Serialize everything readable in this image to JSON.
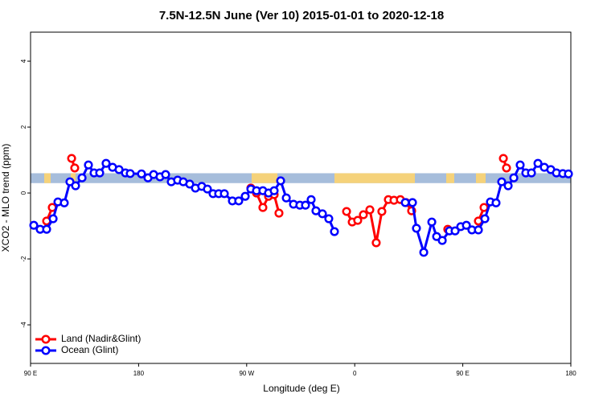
{
  "chart_data": {
    "type": "line",
    "title": "7.5N-12.5N June (Ver 10)   2015-01-01 to 2020-12-18",
    "x_label": "Longitude (deg E)",
    "y_label": "XCO2 - MLO trend (ppm)",
    "xlim": [
      90,
      540
    ],
    "ylim": [
      -5.17,
      4.88
    ],
    "xticks": [
      {
        "value": 90,
        "label": "90 E"
      },
      180,
      {
        "value": 270,
        "label": "90 W"
      },
      {
        "value": 360,
        "label": "0"
      },
      {
        "value": 450,
        "label": "90 E"
      },
      {
        "value": 540,
        "label": "180"
      }
    ],
    "yticks": [
      -4,
      -2,
      0,
      2,
      4
    ],
    "band": [
      0.3,
      0.6
    ],
    "legend": "bottom-left",
    "series": [
      {
        "name": "Land (Nadir&Glint)",
        "color": "#ff0000",
        "x": [
          103.4,
          108.1,
          115,
          124.2,
          126.8,
          200,
          273.5,
          278.2,
          283.5,
          288.2,
          292.9,
          296.9,
          380,
          353.2,
          357.9,
          362.5,
          367.2,
          372.6,
          377.9,
          382.6,
          388,
          392.7,
          398,
          402.7,
          407.4,
          420,
          437.5,
          450,
          463,
          467.7,
          475,
          483.8,
          486.4
        ],
        "values": [
          -0.85,
          -0.44,
          null,
          1.05,
          0.76,
          null,
          0.15,
          0.0,
          -0.44,
          -0.1,
          -0.05,
          -0.61,
          null,
          -0.56,
          -0.88,
          -0.83,
          -0.66,
          -0.51,
          -1.51,
          -0.56,
          -0.2,
          -0.22,
          -0.2,
          -0.29,
          -0.54,
          null,
          -1.1,
          null,
          -0.85,
          -0.44,
          null,
          1.05,
          0.76
        ]
      },
      {
        "name": "Ocean (Glint)",
        "color": "#0000ff",
        "x": [
          92.7,
          98,
          103.4,
          108.8,
          112.8,
          118.1,
          122.8,
          127.5,
          132.9,
          138.2,
          142.9,
          147.6,
          152.9,
          158.3,
          163.7,
          169,
          173,
          182.4,
          187.8,
          192.5,
          197.8,
          202.5,
          207.2,
          212.5,
          217.2,
          222.6,
          227.3,
          232.6,
          237.3,
          242,
          246.7,
          251.4,
          258.1,
          263.4,
          268.8,
          273.5,
          278.2,
          283.5,
          288.2,
          292.9,
          298.3,
          303,
          309,
          314.3,
          319,
          323.7,
          327.7,
          333.1,
          338.4,
          343.1,
          370,
          402.1,
          408.1,
          411.4,
          417.5,
          424.2,
          428.2,
          432.9,
          438.9,
          443.6,
          448.3,
          453,
          457.6,
          463,
          468.4,
          473,
          477.7,
          482.4,
          487.8,
          492.5,
          497.8,
          502.5,
          507.2,
          512.6,
          517.9,
          523.3,
          528,
          533.3,
          538
        ],
        "values": [
          -0.98,
          -1.1,
          -1.1,
          -0.78,
          -0.27,
          -0.3,
          0.34,
          0.22,
          0.46,
          0.85,
          0.61,
          0.61,
          0.9,
          0.78,
          0.71,
          0.61,
          0.59,
          0.58,
          0.46,
          0.56,
          0.49,
          0.56,
          0.34,
          0.39,
          0.34,
          0.27,
          0.15,
          0.2,
          0.12,
          -0.02,
          -0.02,
          -0.02,
          -0.24,
          -0.24,
          -0.1,
          0.12,
          0.07,
          0.07,
          0.0,
          0.07,
          0.37,
          -0.15,
          -0.34,
          -0.37,
          -0.37,
          -0.2,
          -0.54,
          -0.63,
          -0.78,
          -1.17,
          null,
          -0.29,
          -0.29,
          -1.07,
          -1.8,
          -0.88,
          -1.32,
          -1.44,
          -1.15,
          -1.15,
          -1.02,
          -0.98,
          -1.12,
          -1.12,
          -0.78,
          -0.27,
          -0.3,
          0.34,
          0.22,
          0.46,
          0.85,
          0.61,
          0.61,
          0.9,
          0.78,
          0.71,
          0.61,
          0.59,
          0.58
        ]
      }
    ]
  }
}
